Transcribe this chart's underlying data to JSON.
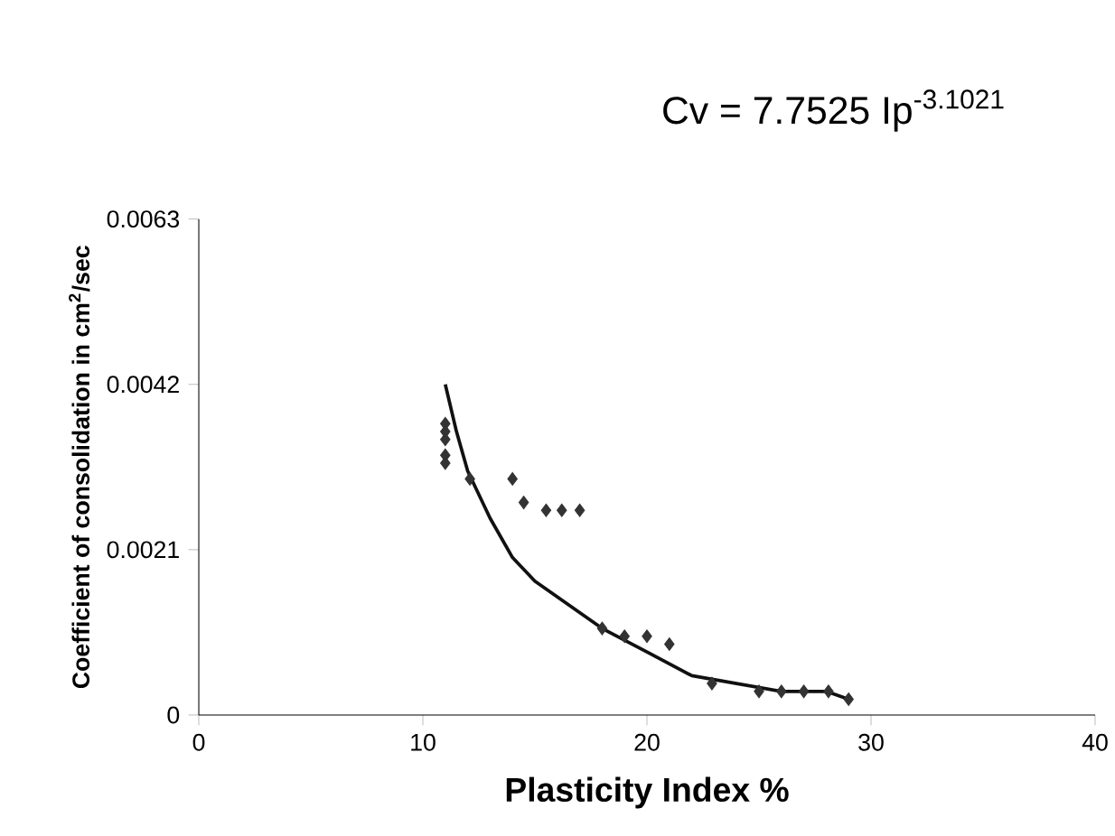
{
  "chart_data": {
    "type": "scatter",
    "title": "Cv = 7.7525  Ip$^{-3.1021}$",
    "xlabel": "Plasticity Index %",
    "ylabel": "Coefficient of consolidation in cm$^{2}$/sec",
    "xlim": [
      0,
      40
    ],
    "xticks": [
      0,
      10,
      20,
      30,
      40
    ],
    "ylim": [
      0,
      0.0063
    ],
    "yticks": [
      0,
      0.0021,
      0.0042,
      0.0063
    ],
    "series": [
      {
        "color": "#333333",
        "marker": "diamond",
        "x": [
          11,
          11,
          11,
          11,
          11,
          12.1,
          14,
          14.5,
          15.5,
          16.2,
          17,
          18,
          19,
          20,
          21,
          22.9,
          25,
          26,
          27,
          28.1,
          29
        ],
        "values": [
          0.0037,
          0.0036,
          0.0035,
          0.0033,
          0.0032,
          0.003,
          0.003,
          0.0027,
          0.0026,
          0.0026,
          0.0026,
          0.0011,
          0.001,
          0.001,
          0.0009,
          0.0004,
          0.0003,
          0.0003,
          0.0003,
          0.0003,
          0.0002
        ]
      },
      {
        "type": "line",
        "color": "#111111",
        "marker": "none",
        "line_style": "solid",
        "x": [
          11,
          11.5,
          12,
          13,
          14,
          15,
          16,
          18,
          20,
          22,
          24,
          26,
          28,
          29
        ],
        "values": [
          0.0042,
          0.0036,
          0.0031,
          0.0025,
          0.002,
          0.0017,
          0.0015,
          0.0011,
          0.0008,
          0.0005,
          0.0004,
          0.0003,
          0.0003,
          0.0002
        ]
      }
    ]
  }
}
